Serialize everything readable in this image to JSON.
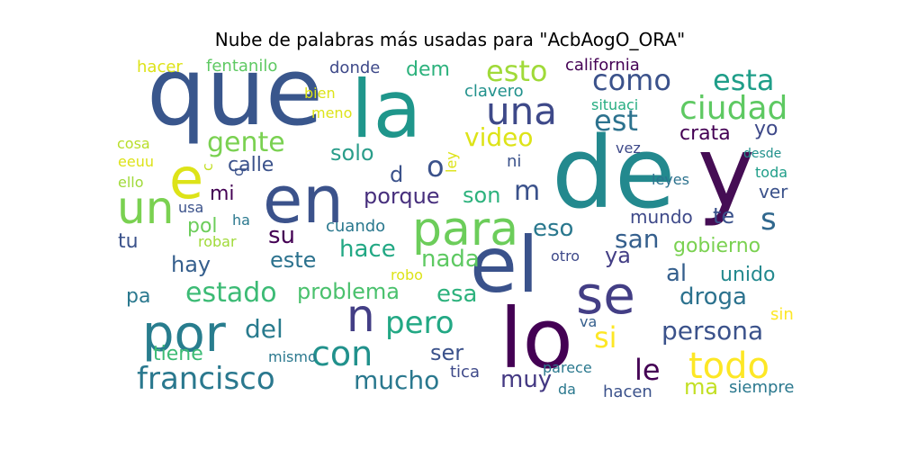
{
  "chart_data": {
    "type": "wordcloud",
    "title": "Nube de palabras más usadas para \"AcbAogO_ORA\"",
    "words": [
      {
        "text": "que",
        "color": "#39568c"
      },
      {
        "text": "la",
        "color": "#1f968b"
      },
      {
        "text": "de",
        "color": "#23898e"
      },
      {
        "text": "y",
        "color": "#450d54"
      },
      {
        "text": "el",
        "color": "#3a528b"
      },
      {
        "text": "lo",
        "color": "#440154"
      },
      {
        "text": "en",
        "color": "#3b528b"
      },
      {
        "text": "se",
        "color": "#433e85"
      },
      {
        "text": "e",
        "color": "#dde318"
      },
      {
        "text": "un",
        "color": "#7ad151"
      },
      {
        "text": "por",
        "color": "#287d8e"
      },
      {
        "text": "n",
        "color": "#433e85"
      },
      {
        "text": "para",
        "color": "#6ccd5a"
      },
      {
        "text": "una",
        "color": "#3e4989"
      },
      {
        "text": "con",
        "color": "#21918c"
      },
      {
        "text": "todo",
        "color": "#fde725"
      },
      {
        "text": "francisco",
        "color": "#2a788e"
      },
      {
        "text": "ciudad",
        "color": "#5ec962"
      },
      {
        "text": "esto",
        "color": "#a0da39"
      },
      {
        "text": "como",
        "color": "#3b528b"
      },
      {
        "text": "esta",
        "color": "#1f9e89"
      },
      {
        "text": "est",
        "color": "#2c728e"
      },
      {
        "text": "o",
        "color": "#3b528b"
      },
      {
        "text": "pero",
        "color": "#22a884"
      },
      {
        "text": "s",
        "color": "#31688e"
      },
      {
        "text": "estado",
        "color": "#3cbb75"
      },
      {
        "text": "persona",
        "color": "#3b528b"
      },
      {
        "text": "gente",
        "color": "#7ad151"
      },
      {
        "text": "video",
        "color": "#dde318"
      },
      {
        "text": "le",
        "color": "#440154"
      },
      {
        "text": "del",
        "color": "#297b8e"
      },
      {
        "text": "si",
        "color": "#fde725"
      },
      {
        "text": "san",
        "color": "#355f8d"
      },
      {
        "text": "mucho",
        "color": "#2a788e"
      },
      {
        "text": "problema",
        "color": "#4ac16d"
      },
      {
        "text": "esa",
        "color": "#2db27d"
      },
      {
        "text": "droga",
        "color": "#2c728e"
      },
      {
        "text": "m",
        "color": "#3b528b"
      },
      {
        "text": "eso",
        "color": "#2a788e"
      },
      {
        "text": "hace",
        "color": "#22a884"
      },
      {
        "text": "nada",
        "color": "#5ec962"
      },
      {
        "text": "su",
        "color": "#440154"
      },
      {
        "text": "solo",
        "color": "#2a9d8a"
      },
      {
        "text": "hay",
        "color": "#355f8d"
      },
      {
        "text": "este",
        "color": "#2c728e"
      },
      {
        "text": "son",
        "color": "#2db27d"
      },
      {
        "text": "porque",
        "color": "#472f7d"
      },
      {
        "text": "al",
        "color": "#355f8d"
      },
      {
        "text": "ser",
        "color": "#3b528b"
      },
      {
        "text": "muy",
        "color": "#443983"
      },
      {
        "text": "ma",
        "color": "#c2df23"
      },
      {
        "text": "gobierno",
        "color": "#7ad151"
      },
      {
        "text": "unido",
        "color": "#23898e"
      },
      {
        "text": "ya",
        "color": "#433e85"
      },
      {
        "text": "yo",
        "color": "#3e4989"
      },
      {
        "text": "crata",
        "color": "#440154"
      },
      {
        "text": "d",
        "color": "#3b528b"
      },
      {
        "text": "mi",
        "color": "#440154"
      },
      {
        "text": "calle",
        "color": "#3b528b"
      },
      {
        "text": "dem",
        "color": "#2db27d"
      },
      {
        "text": "tiene",
        "color": "#3cbb75"
      },
      {
        "text": "mundo",
        "color": "#3e4989"
      },
      {
        "text": "te",
        "color": "#3b528b"
      },
      {
        "text": "ver",
        "color": "#3b528b"
      },
      {
        "text": "pol",
        "color": "#6ccd5a"
      },
      {
        "text": "pa",
        "color": "#2a788e"
      },
      {
        "text": "tu",
        "color": "#3b528b"
      },
      {
        "text": "fentanilo",
        "color": "#5ec962"
      },
      {
        "text": "hacer",
        "color": "#dde318"
      },
      {
        "text": "california",
        "color": "#440154"
      },
      {
        "text": "clavero",
        "color": "#21918c"
      },
      {
        "text": "donde",
        "color": "#3e4989"
      },
      {
        "text": "cuando",
        "color": "#2a788e"
      },
      {
        "text": "situaci",
        "color": "#26ad81"
      },
      {
        "text": "leyes",
        "color": "#2c728e"
      },
      {
        "text": "ni",
        "color": "#3b528b"
      },
      {
        "text": "otro",
        "color": "#3e4989"
      },
      {
        "text": "sin",
        "color": "#fde725"
      },
      {
        "text": "va",
        "color": "#355f8d"
      },
      {
        "text": "robo",
        "color": "#dde318"
      },
      {
        "text": "mismo",
        "color": "#2a788e"
      },
      {
        "text": "tica",
        "color": "#3e4989"
      },
      {
        "text": "parece",
        "color": "#2a788e"
      },
      {
        "text": "da",
        "color": "#2a788e"
      },
      {
        "text": "hacen",
        "color": "#3b528b"
      },
      {
        "text": "siempre",
        "color": "#2a788e"
      },
      {
        "text": "bien",
        "color": "#dde318"
      },
      {
        "text": "meno",
        "color": "#dde318"
      },
      {
        "text": "cosa",
        "color": "#b8de29"
      },
      {
        "text": "eeuu",
        "color": "#dde318"
      },
      {
        "text": "ello",
        "color": "#a0da39"
      },
      {
        "text": "usa",
        "color": "#3b528b"
      },
      {
        "text": "ha",
        "color": "#2a788e"
      },
      {
        "text": "robar",
        "color": "#a0da39"
      },
      {
        "text": "c",
        "color": "#c2df23"
      },
      {
        "text": "q",
        "color": "#3b528b"
      },
      {
        "text": "ley",
        "color": "#dde318"
      },
      {
        "text": "vez",
        "color": "#3e4989"
      },
      {
        "text": "desde",
        "color": "#21918c"
      },
      {
        "text": "toda",
        "color": "#1f9e89"
      }
    ]
  }
}
